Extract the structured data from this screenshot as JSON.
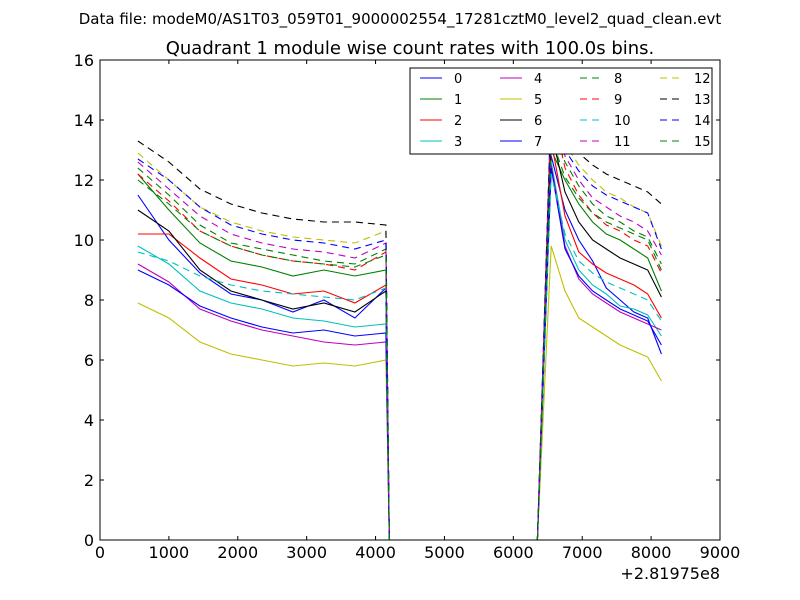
{
  "figure": {
    "suptitle": "Data file: modeM0/AS1T03_059T01_9000002554_17281cztM0_level2_quad_clean.evt",
    "title": "Quadrant 1 module wise count rates with 100.0s bins.",
    "offset_label": "+2.81975e8"
  },
  "chart_data": {
    "type": "line",
    "title": "Quadrant 1 module wise count rates with 100.0s bins.",
    "xlabel": "",
    "ylabel": "",
    "xlim": [
      0,
      9000
    ],
    "ylim": [
      0,
      16
    ],
    "x_offset": 281975000,
    "xticks": [
      0,
      1000,
      2000,
      3000,
      4000,
      5000,
      6000,
      7000,
      8000,
      9000
    ],
    "yticks": [
      0,
      2,
      4,
      6,
      8,
      10,
      12,
      14,
      16
    ],
    "grid": false,
    "legend_position": "top-right",
    "x_segments": [
      [
        550,
        4150
      ],
      [
        6550,
        8150
      ]
    ],
    "gap": {
      "x": [
        4200,
        6350
      ],
      "y": 0
    },
    "series": [
      {
        "name": "0",
        "color": "#0000ff",
        "dash": false,
        "seg1": [
          11.5,
          10.0,
          8.9,
          8.2,
          8.0,
          7.6,
          8.0,
          7.4,
          8.4
        ],
        "seg2": [
          12.8,
          11.0,
          10.0,
          9.3,
          8.4,
          8.0,
          7.6,
          7.4,
          6.2
        ]
      },
      {
        "name": "1",
        "color": "#008000",
        "dash": false,
        "seg1": [
          12.2,
          11.0,
          9.9,
          9.3,
          9.1,
          8.8,
          9.0,
          8.8,
          9.0
        ],
        "seg2": [
          13.0,
          12.0,
          11.2,
          10.6,
          10.2,
          10.0,
          9.7,
          9.4,
          8.3
        ]
      },
      {
        "name": "2",
        "color": "#ff0000",
        "dash": false,
        "seg1": [
          10.2,
          10.2,
          9.4,
          8.7,
          8.5,
          8.2,
          8.3,
          7.9,
          8.5
        ],
        "seg2": [
          13.3,
          10.8,
          9.6,
          9.2,
          8.9,
          8.7,
          8.5,
          8.2,
          7.4
        ]
      },
      {
        "name": "3",
        "color": "#00bfbf",
        "dash": false,
        "seg1": [
          9.8,
          9.2,
          8.3,
          7.9,
          7.7,
          7.4,
          7.3,
          7.1,
          7.2
        ],
        "seg2": [
          12.6,
          10.0,
          9.0,
          8.5,
          8.2,
          7.8,
          7.7,
          7.5,
          6.8
        ]
      },
      {
        "name": "4",
        "color": "#bf00bf",
        "dash": false,
        "seg1": [
          9.2,
          8.6,
          7.7,
          7.3,
          7.0,
          6.8,
          6.6,
          6.5,
          6.6
        ],
        "seg2": [
          12.5,
          9.8,
          8.7,
          8.2,
          7.9,
          7.6,
          7.4,
          7.2,
          7.0
        ]
      },
      {
        "name": "5",
        "color": "#bfbf00",
        "dash": false,
        "seg1": [
          7.9,
          7.4,
          6.6,
          6.2,
          6.0,
          5.8,
          5.9,
          5.8,
          6.0
        ],
        "seg2": [
          9.8,
          8.3,
          7.4,
          7.1,
          6.8,
          6.5,
          6.3,
          6.1,
          5.3
        ]
      },
      {
        "name": "6",
        "color": "#000000",
        "dash": false,
        "seg1": [
          11.0,
          10.3,
          9.0,
          8.3,
          8.0,
          7.7,
          7.9,
          7.6,
          8.3
        ],
        "seg2": [
          13.6,
          11.6,
          10.6,
          10.0,
          9.7,
          9.4,
          9.2,
          9.0,
          8.1
        ]
      },
      {
        "name": "7",
        "color": "#0000ff",
        "dash": false,
        "seg1": [
          9.0,
          8.5,
          7.8,
          7.4,
          7.1,
          6.9,
          7.0,
          6.8,
          6.9
        ],
        "seg2": [
          12.4,
          9.7,
          8.8,
          8.3,
          8.0,
          7.7,
          7.5,
          7.3,
          6.5
        ]
      },
      {
        "name": "8",
        "color": "#008000",
        "dash": true,
        "seg1": [
          12.4,
          11.5,
          10.5,
          9.9,
          9.7,
          9.5,
          9.3,
          9.2,
          9.7
        ],
        "seg2": [
          13.9,
          12.6,
          11.8,
          11.2,
          10.8,
          10.6,
          10.3,
          10.1,
          9.2
        ]
      },
      {
        "name": "9",
        "color": "#ff0000",
        "dash": true,
        "seg1": [
          12.2,
          11.3,
          10.3,
          9.8,
          9.5,
          9.3,
          9.2,
          9.0,
          9.6
        ],
        "seg2": [
          14.5,
          12.4,
          11.5,
          10.9,
          10.5,
          10.3,
          10.0,
          9.8,
          8.9
        ]
      },
      {
        "name": "10",
        "color": "#00bfbf",
        "dash": true,
        "seg1": [
          9.6,
          9.3,
          8.8,
          8.5,
          8.3,
          8.2,
          8.1,
          8.0,
          8.4
        ],
        "seg2": [
          12.2,
          10.2,
          9.3,
          8.9,
          8.6,
          8.4,
          8.2,
          8.0,
          7.3
        ]
      },
      {
        "name": "11",
        "color": "#bf00bf",
        "dash": true,
        "seg1": [
          12.6,
          11.7,
          10.8,
          10.2,
          9.9,
          9.7,
          9.6,
          9.4,
          9.9
        ],
        "seg2": [
          14.8,
          12.8,
          12.0,
          11.4,
          11.1,
          10.8,
          10.6,
          10.3,
          9.5
        ]
      },
      {
        "name": "12",
        "color": "#bfbf00",
        "dash": true,
        "seg1": [
          12.9,
          12.0,
          11.1,
          10.6,
          10.3,
          10.1,
          10.0,
          9.9,
          10.3
        ],
        "seg2": [
          14.0,
          13.2,
          12.5,
          12.0,
          11.6,
          11.4,
          11.1,
          10.9,
          9.8
        ]
      },
      {
        "name": "13",
        "color": "#000000",
        "dash": true,
        "seg1": [
          13.3,
          12.6,
          11.7,
          11.2,
          10.9,
          10.7,
          10.6,
          10.6,
          10.5
        ],
        "seg2": [
          14.6,
          13.6,
          12.9,
          12.5,
          12.2,
          12.0,
          11.8,
          11.6,
          11.2
        ]
      },
      {
        "name": "14",
        "color": "#0000ff",
        "dash": true,
        "seg1": [
          12.7,
          12.0,
          11.1,
          10.5,
          10.2,
          10.0,
          9.9,
          9.7,
          10.0
        ],
        "seg2": [
          14.1,
          13.0,
          12.3,
          11.8,
          11.5,
          11.3,
          11.1,
          10.9,
          9.7
        ]
      },
      {
        "name": "15",
        "color": "#008000",
        "dash": true,
        "seg1": [
          12.0,
          11.2,
          10.3,
          9.8,
          9.5,
          9.3,
          9.2,
          9.1,
          9.5
        ],
        "seg2": [
          13.4,
          12.1,
          11.4,
          10.9,
          10.6,
          10.4,
          10.2,
          10.0,
          9.0
        ]
      }
    ]
  }
}
